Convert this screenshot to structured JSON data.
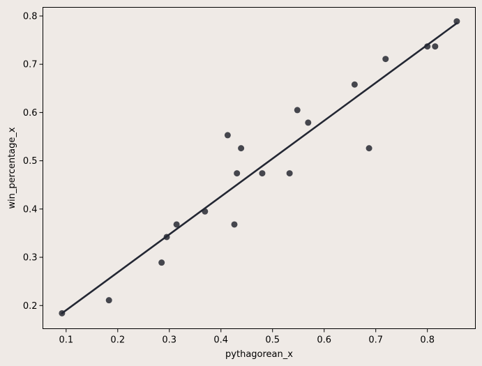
{
  "chart_data": {
    "type": "scatter",
    "xlabel": "pythagorean_x",
    "ylabel": "win_percentage_x",
    "xlim": [
      0.055,
      0.893
    ],
    "ylim": [
      0.152,
      0.818
    ],
    "xticks": [
      0.1,
      0.2,
      0.3,
      0.4,
      0.5,
      0.6,
      0.7,
      0.8
    ],
    "yticks": [
      0.2,
      0.3,
      0.4,
      0.5,
      0.6,
      0.7,
      0.8
    ],
    "xtick_labels": [
      "0.1",
      "0.2",
      "0.3",
      "0.4",
      "0.5",
      "0.6",
      "0.7",
      "0.8"
    ],
    "ytick_labels": [
      "0.2",
      "0.3",
      "0.4",
      "0.5",
      "0.6",
      "0.7",
      "0.8"
    ],
    "grid": false,
    "points": [
      {
        "x": 0.092,
        "y": 0.184
      },
      {
        "x": 0.183,
        "y": 0.211
      },
      {
        "x": 0.285,
        "y": 0.289
      },
      {
        "x": 0.295,
        "y": 0.342
      },
      {
        "x": 0.314,
        "y": 0.368
      },
      {
        "x": 0.369,
        "y": 0.395
      },
      {
        "x": 0.413,
        "y": 0.553
      },
      {
        "x": 0.426,
        "y": 0.368
      },
      {
        "x": 0.431,
        "y": 0.474
      },
      {
        "x": 0.439,
        "y": 0.526
      },
      {
        "x": 0.48,
        "y": 0.474
      },
      {
        "x": 0.533,
        "y": 0.474
      },
      {
        "x": 0.548,
        "y": 0.605
      },
      {
        "x": 0.569,
        "y": 0.579
      },
      {
        "x": 0.659,
        "y": 0.658
      },
      {
        "x": 0.687,
        "y": 0.526
      },
      {
        "x": 0.719,
        "y": 0.711
      },
      {
        "x": 0.8,
        "y": 0.737
      },
      {
        "x": 0.815,
        "y": 0.737
      },
      {
        "x": 0.857,
        "y": 0.789
      }
    ],
    "regression_line": {
      "x": [
        0.092,
        0.857
      ],
      "y": [
        0.184,
        0.785
      ]
    },
    "colors": {
      "background": "#efeae6",
      "marker": "#3b3d45",
      "line": "#232733",
      "axes": "#000000"
    }
  }
}
